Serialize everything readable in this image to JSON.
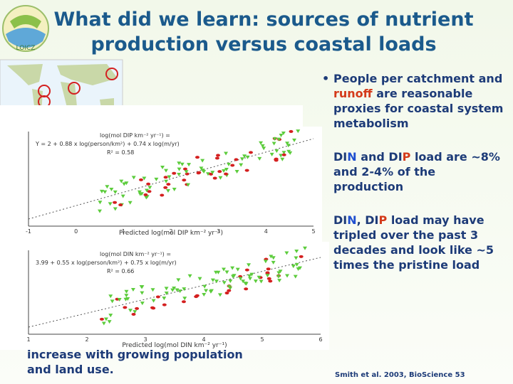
{
  "header": {
    "title_line1": "What did we learn: sources of nutrient",
    "title_line2": "production versus coastal loads",
    "logo": "LOICZ"
  },
  "figures": [
    {
      "equation_lhs": "log(mol DIP km⁻² yr⁻¹) =",
      "equation": "Y = 2 + 0.88 x log(person/km²) + 0.74 x log(m/yr)",
      "r2": "R² = 0.58",
      "x_label": "Predicted log(mol DIP km⁻² yr⁻¹)",
      "x_ticks": [
        "-1",
        "0",
        "1",
        "2",
        "3",
        "4",
        "5"
      ]
    },
    {
      "equation_lhs": "log(mol DIN km⁻² yr⁻¹) =",
      "equation": "3.99 + 0.55 x log(person/km²) + 0.75 x log(m/yr)",
      "r2": "R² = 0.66",
      "x_label": "Predicted log(mol DIN km⁻² yr⁻¹)",
      "x_ticks": [
        "1",
        "2",
        "3",
        "4",
        "5",
        "6"
      ]
    }
  ],
  "left_text": [
    "increase with growing population",
    "and land use."
  ],
  "bullets": [
    [
      "People per catchment and ",
      "runoff",
      " are reasonable proxies for coastal system metabolism"
    ],
    [
      "DI",
      "N",
      " and DI",
      "P",
      " load are ~8% and 2-4% of the production"
    ],
    [
      "DI",
      "N",
      ", DI",
      "P",
      " load may have tripled over the past 3 decades and look like ~5 times the pristine load"
    ]
  ],
  "citation": "Smith et al. 2003, BioScience 53"
}
